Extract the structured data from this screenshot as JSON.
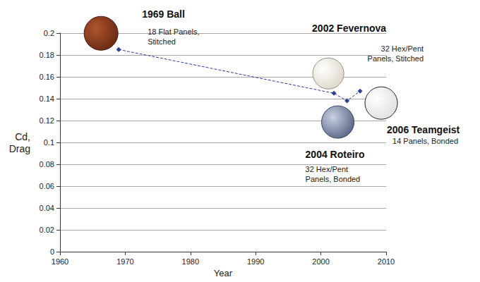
{
  "chart_data": {
    "type": "line",
    "x_label": "Year",
    "y_label": "Cd, Drag",
    "x": [
      1969,
      2002,
      2004,
      2006
    ],
    "values": [
      0.185,
      0.145,
      0.138,
      0.147
    ],
    "color": "#2f3f95",
    "marker": "diamond",
    "line_style": "dashed",
    "xlim": [
      1960,
      2010
    ],
    "xticks": [
      1960,
      1970,
      1980,
      1990,
      2000,
      2010
    ],
    "ylim": [
      0,
      0.2
    ],
    "yticks": [
      0,
      0.02,
      0.04,
      0.06,
      0.08,
      0.1,
      0.12,
      0.14,
      0.16,
      0.18,
      0.2
    ],
    "grid": true,
    "annotations": [
      {
        "title": "1969 Ball",
        "text": "18 Flat Panels, Stitched"
      },
      {
        "title": "2002 Fevernova",
        "text": "32 Hex/Pent Panels, Stitched"
      },
      {
        "title": "2004 Roteiro",
        "text": "32 Hex/Pent Panels, Bonded"
      },
      {
        "title": "2006 Teamgeist",
        "text": "14 Panels, Bonded"
      }
    ]
  }
}
